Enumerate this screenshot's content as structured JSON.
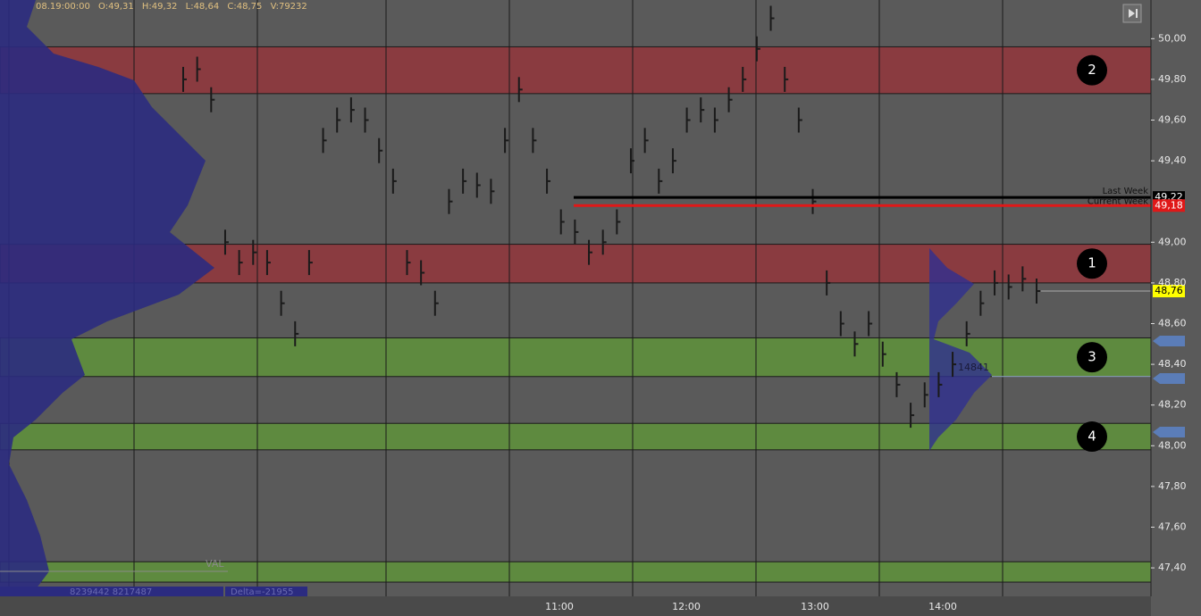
{
  "chart_data": {
    "type": "price-bars",
    "header": {
      "time": "08.19:00:00",
      "open": "O:49,31",
      "high": "H:49,32",
      "low": "L:48,64",
      "close": "C:48,75",
      "volume": "V:79232"
    },
    "ylim": [
      47.26,
      50.19
    ],
    "yticks": [
      {
        "value": 50,
        "label": "50,00"
      },
      {
        "value": 49.8,
        "label": "49,80"
      },
      {
        "value": 49.6,
        "label": "49,60"
      },
      {
        "value": 49.4,
        "label": "49,40"
      },
      {
        "value": 49,
        "label": "49,00"
      },
      {
        "value": 48.8,
        "label": "48,80"
      },
      {
        "value": 48.6,
        "label": "48,60"
      },
      {
        "value": 48.4,
        "label": "48,40"
      },
      {
        "value": 48.2,
        "label": "48,20"
      },
      {
        "value": 48,
        "label": "48,00"
      },
      {
        "value": 47.8,
        "label": "47,80"
      },
      {
        "value": 47.6,
        "label": "47,60"
      },
      {
        "value": 47.4,
        "label": "47,40"
      }
    ],
    "xticks": [
      "11:00",
      "12:00",
      "13:00",
      "14:00"
    ],
    "zones": [
      {
        "label": "2",
        "from": 49.73,
        "to": 49.96,
        "color": "#8a3b40"
      },
      {
        "label": "1",
        "from": 48.8,
        "to": 48.99,
        "color": "#8a3b40"
      },
      {
        "label": "3",
        "from": 48.34,
        "to": 48.53,
        "color": "#5e8a3f"
      },
      {
        "label": "4",
        "from": 47.98,
        "to": 48.11,
        "color": "#5e8a3f"
      },
      {
        "from": 47.33,
        "to": 47.43,
        "color": "#5e8a3f"
      }
    ],
    "levels": [
      {
        "label": "Last Week",
        "value": 49.22,
        "value_label": "49,22",
        "color": "#000000"
      },
      {
        "label": "Current Week",
        "value": 49.18,
        "value_label": "49,18",
        "color": "#e01818"
      }
    ],
    "last_price": {
      "value": 48.76,
      "value_label": "48,76",
      "color": "#ffff00"
    },
    "annotations": {
      "val": "VAL",
      "delta": "Delta=-21955",
      "volume": "8239442 8217487",
      "poc": "14841"
    },
    "series": [
      {
        "name": "Price",
        "color": "#1a1a1a",
        "values": [
          49.8,
          49.85,
          49.7,
          49.0,
          48.9,
          48.95,
          48.9,
          48.7,
          48.55,
          48.9,
          49.5,
          49.6,
          49.65,
          49.6,
          49.45,
          49.3,
          48.9,
          48.85,
          48.7,
          49.2,
          49.3,
          49.28,
          49.25,
          49.5,
          49.75,
          49.5,
          49.3,
          49.1,
          49.05,
          48.95,
          49.0,
          49.1,
          49.4,
          49.5,
          49.3,
          49.4,
          49.6,
          49.65,
          49.6,
          49.7,
          49.8,
          49.95,
          50.1,
          49.8,
          49.6,
          49.2,
          48.8,
          48.6,
          48.5,
          48.6,
          48.45,
          48.3,
          48.15,
          48.25,
          48.3,
          48.4,
          48.55,
          48.7,
          48.8,
          48.78,
          48.82,
          48.76
        ]
      }
    ]
  }
}
